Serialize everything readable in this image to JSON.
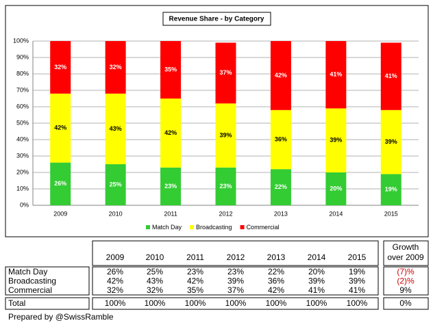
{
  "chart_data": {
    "type": "stacked_bar",
    "title": "Revenue Share - by Category",
    "categories": [
      "2009",
      "2010",
      "2011",
      "2012",
      "2013",
      "2014",
      "2015"
    ],
    "series": [
      {
        "name": "Match Day",
        "color": "#33cc33",
        "values": [
          26,
          25,
          23,
          23,
          22,
          20,
          19
        ],
        "value_labels": [
          "26%",
          "25%",
          "23%",
          "23%",
          "22%",
          "20%",
          "19%"
        ],
        "label_color": "#ffffff"
      },
      {
        "name": "Broadcasting",
        "color": "#ffff00",
        "values": [
          42,
          43,
          42,
          39,
          36,
          39,
          39
        ],
        "value_labels": [
          "42%",
          "43%",
          "42%",
          "39%",
          "36%",
          "39%",
          "39%"
        ],
        "label_color": "#000000"
      },
      {
        "name": "Commercial",
        "color": "#ff0000",
        "values": [
          32,
          32,
          35,
          37,
          42,
          41,
          41
        ],
        "value_labels": [
          "32%",
          "32%",
          "35%",
          "37%",
          "42%",
          "41%",
          "41%"
        ],
        "label_color": "#ffffff"
      }
    ],
    "ylim": [
      0,
      100
    ],
    "yticks": [
      {
        "value": 0,
        "label": "0%"
      },
      {
        "value": 10,
        "label": "10%"
      },
      {
        "value": 20,
        "label": "20%"
      },
      {
        "value": 30,
        "label": "30%"
      },
      {
        "value": 40,
        "label": "40%"
      },
      {
        "value": 50,
        "label": "50%"
      },
      {
        "value": 60,
        "label": "60%"
      },
      {
        "value": 70,
        "label": "70%"
      },
      {
        "value": 80,
        "label": "80%"
      },
      {
        "value": 90,
        "label": "90%"
      },
      {
        "value": 100,
        "label": "100%"
      }
    ],
    "grid": true,
    "legend": "bottom"
  },
  "table": {
    "columns": [
      "2009",
      "2010",
      "2011",
      "2012",
      "2013",
      "2014",
      "2015"
    ],
    "growth_header": [
      "Growth",
      "over 2009"
    ],
    "rows": [
      {
        "label": "Match Day",
        "values": [
          "26%",
          "25%",
          "23%",
          "23%",
          "22%",
          "20%",
          "19%"
        ],
        "growth": "(7)%",
        "growth_color": "#cc0000"
      },
      {
        "label": "Broadcasting",
        "values": [
          "42%",
          "43%",
          "42%",
          "39%",
          "36%",
          "39%",
          "39%"
        ],
        "growth": "(2)%",
        "growth_color": "#cc0000"
      },
      {
        "label": "Commercial",
        "values": [
          "32%",
          "32%",
          "35%",
          "37%",
          "42%",
          "41%",
          "41%"
        ],
        "growth": "9%",
        "growth_color": "#000000"
      }
    ],
    "total": {
      "label": "Total",
      "values": [
        "100%",
        "100%",
        "100%",
        "100%",
        "100%",
        "100%",
        "100%"
      ],
      "growth": "0%"
    }
  },
  "footer": "Prepared by @SwissRamble"
}
